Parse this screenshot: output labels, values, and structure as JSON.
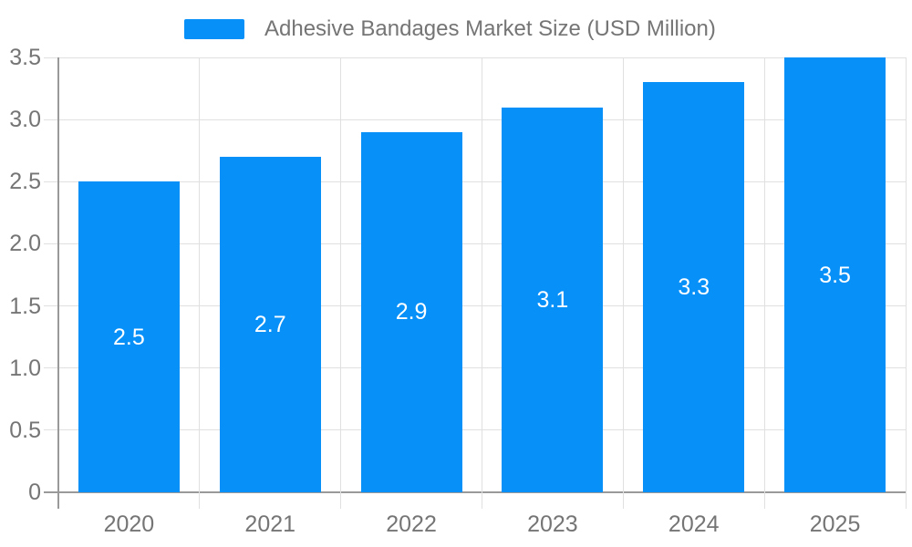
{
  "chart_data": {
    "type": "bar",
    "title": "Adhesive Bandages Market Size (USD Million)",
    "series_name": "Adhesive Bandages Market Size (USD Million)",
    "categories": [
      "2020",
      "2021",
      "2022",
      "2023",
      "2024",
      "2025"
    ],
    "values": [
      2.5,
      2.7,
      2.9,
      3.1,
      3.3,
      3.5
    ],
    "value_labels": [
      "2.5",
      "2.7",
      "2.9",
      "3.1",
      "3.3",
      "3.5"
    ],
    "xlabel": "",
    "ylabel": "",
    "ylim": [
      0,
      3.5
    ],
    "yticks": [
      0,
      0.5,
      1.0,
      1.5,
      2.0,
      2.5,
      3.0,
      3.5
    ],
    "ytick_labels": [
      "0",
      "0.5",
      "1.0",
      "1.5",
      "2.0",
      "2.5",
      "3.0",
      "3.5"
    ],
    "grid": true,
    "legend_position": "top",
    "bar_color": "#0690f8",
    "value_label_color": "#ffffff",
    "axis_text_color": "#757575",
    "grid_color": "#e0e0e0",
    "axis_line_color": "#999999",
    "background": "#ffffff"
  }
}
